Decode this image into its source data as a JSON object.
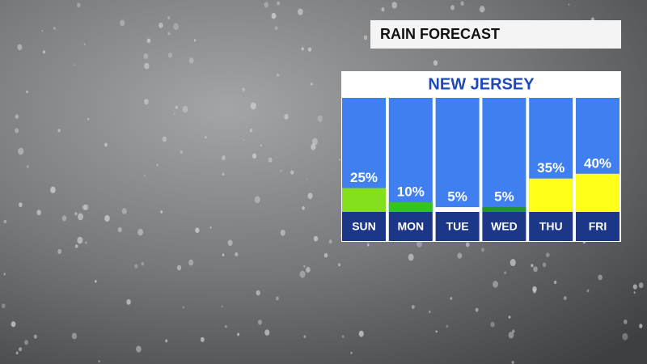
{
  "chart_data": {
    "type": "bar",
    "title": "RAIN FORECAST",
    "subtitle": "NEW JERSEY",
    "categories": [
      "SUN",
      "MON",
      "TUE",
      "WED",
      "THU",
      "FRI"
    ],
    "values": [
      25,
      10,
      5,
      5,
      35,
      40
    ],
    "value_labels": [
      "25%",
      "10%",
      "5%",
      "5%",
      "35%",
      "40%"
    ],
    "colors": [
      "#84e01c",
      "#34c51c",
      "#ffffff",
      "#23952a",
      "#ffff1a",
      "#ffff1a"
    ]
  }
}
